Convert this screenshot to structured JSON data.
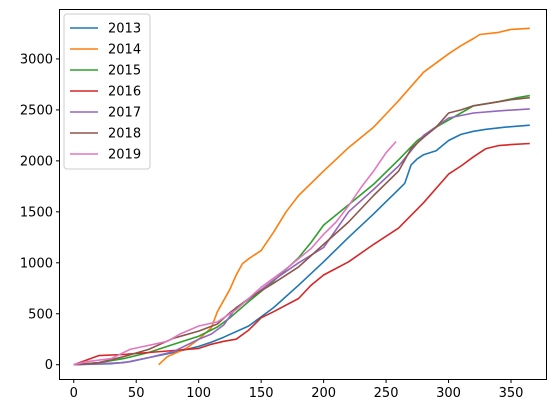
{
  "chart_data": {
    "type": "line",
    "xlim": [
      -11,
      378
    ],
    "ylim": [
      -140,
      3480
    ],
    "x_ticks": [
      0,
      50,
      100,
      150,
      200,
      250,
      300,
      350
    ],
    "y_ticks": [
      0,
      500,
      1000,
      1500,
      2000,
      2500,
      3000
    ],
    "grid": false,
    "legend_position": "top-left",
    "series": [
      {
        "name": "2013",
        "color": "#1f77b4",
        "points": [
          [
            0,
            0
          ],
          [
            30,
            10
          ],
          [
            45,
            30
          ],
          [
            60,
            70
          ],
          [
            80,
            120
          ],
          [
            100,
            180
          ],
          [
            110,
            220
          ],
          [
            120,
            270
          ],
          [
            140,
            380
          ],
          [
            160,
            560
          ],
          [
            180,
            780
          ],
          [
            200,
            1010
          ],
          [
            220,
            1250
          ],
          [
            240,
            1480
          ],
          [
            260,
            1720
          ],
          [
            265,
            1780
          ],
          [
            270,
            1960
          ],
          [
            275,
            2020
          ],
          [
            280,
            2060
          ],
          [
            290,
            2100
          ],
          [
            300,
            2200
          ],
          [
            310,
            2260
          ],
          [
            320,
            2290
          ],
          [
            330,
            2310
          ],
          [
            345,
            2330
          ],
          [
            365,
            2350
          ]
        ]
      },
      {
        "name": "2014",
        "color": "#ff7f0e",
        "points": [
          [
            68,
            0
          ],
          [
            75,
            80
          ],
          [
            90,
            160
          ],
          [
            100,
            250
          ],
          [
            110,
            360
          ],
          [
            115,
            520
          ],
          [
            125,
            740
          ],
          [
            130,
            880
          ],
          [
            135,
            990
          ],
          [
            140,
            1040
          ],
          [
            150,
            1120
          ],
          [
            160,
            1300
          ],
          [
            170,
            1500
          ],
          [
            180,
            1660
          ],
          [
            200,
            1900
          ],
          [
            220,
            2130
          ],
          [
            240,
            2330
          ],
          [
            260,
            2590
          ],
          [
            280,
            2870
          ],
          [
            300,
            3050
          ],
          [
            310,
            3130
          ],
          [
            320,
            3200
          ],
          [
            325,
            3240
          ],
          [
            340,
            3260
          ],
          [
            350,
            3290
          ],
          [
            365,
            3300
          ]
        ]
      },
      {
        "name": "2015",
        "color": "#2ca02c",
        "points": [
          [
            0,
            0
          ],
          [
            20,
            20
          ],
          [
            40,
            60
          ],
          [
            60,
            120
          ],
          [
            80,
            200
          ],
          [
            100,
            280
          ],
          [
            115,
            370
          ],
          [
            125,
            460
          ],
          [
            140,
            620
          ],
          [
            160,
            820
          ],
          [
            180,
            1050
          ],
          [
            190,
            1200
          ],
          [
            200,
            1370
          ],
          [
            220,
            1570
          ],
          [
            240,
            1770
          ],
          [
            260,
            2010
          ],
          [
            275,
            2200
          ],
          [
            290,
            2330
          ],
          [
            300,
            2400
          ],
          [
            310,
            2470
          ],
          [
            320,
            2540
          ],
          [
            340,
            2580
          ],
          [
            355,
            2620
          ],
          [
            365,
            2640
          ]
        ]
      },
      {
        "name": "2016",
        "color": "#d62728",
        "points": [
          [
            0,
            0
          ],
          [
            20,
            90
          ],
          [
            40,
            100
          ],
          [
            60,
            120
          ],
          [
            80,
            140
          ],
          [
            100,
            160
          ],
          [
            110,
            200
          ],
          [
            120,
            230
          ],
          [
            130,
            250
          ],
          [
            140,
            340
          ],
          [
            150,
            460
          ],
          [
            160,
            520
          ],
          [
            180,
            650
          ],
          [
            190,
            780
          ],
          [
            200,
            880
          ],
          [
            220,
            1010
          ],
          [
            240,
            1180
          ],
          [
            260,
            1340
          ],
          [
            280,
            1590
          ],
          [
            300,
            1870
          ],
          [
            310,
            1950
          ],
          [
            320,
            2040
          ],
          [
            330,
            2120
          ],
          [
            340,
            2150
          ],
          [
            350,
            2160
          ],
          [
            365,
            2170
          ]
        ]
      },
      {
        "name": "2017",
        "color": "#9467bd",
        "points": [
          [
            0,
            0
          ],
          [
            40,
            20
          ],
          [
            60,
            70
          ],
          [
            80,
            130
          ],
          [
            100,
            250
          ],
          [
            110,
            300
          ],
          [
            120,
            390
          ],
          [
            130,
            560
          ],
          [
            140,
            640
          ],
          [
            160,
            830
          ],
          [
            180,
            1000
          ],
          [
            200,
            1150
          ],
          [
            220,
            1500
          ],
          [
            240,
            1720
          ],
          [
            260,
            1950
          ],
          [
            280,
            2250
          ],
          [
            300,
            2420
          ],
          [
            320,
            2470
          ],
          [
            340,
            2490
          ],
          [
            365,
            2510
          ]
        ]
      },
      {
        "name": "2018",
        "color": "#8c564b",
        "points": [
          [
            0,
            0
          ],
          [
            20,
            20
          ],
          [
            40,
            80
          ],
          [
            60,
            150
          ],
          [
            80,
            260
          ],
          [
            100,
            330
          ],
          [
            115,
            400
          ],
          [
            125,
            510
          ],
          [
            140,
            650
          ],
          [
            160,
            800
          ],
          [
            180,
            960
          ],
          [
            200,
            1180
          ],
          [
            220,
            1400
          ],
          [
            240,
            1660
          ],
          [
            260,
            1900
          ],
          [
            270,
            2120
          ],
          [
            280,
            2230
          ],
          [
            290,
            2330
          ],
          [
            300,
            2470
          ],
          [
            310,
            2500
          ],
          [
            320,
            2540
          ],
          [
            330,
            2560
          ],
          [
            350,
            2600
          ],
          [
            365,
            2620
          ]
        ]
      },
      {
        "name": "2019",
        "color": "#e377c2",
        "points": [
          [
            0,
            0
          ],
          [
            10,
            30
          ],
          [
            30,
            60
          ],
          [
            45,
            150
          ],
          [
            60,
            190
          ],
          [
            75,
            230
          ],
          [
            85,
            300
          ],
          [
            100,
            380
          ],
          [
            115,
            420
          ],
          [
            130,
            540
          ],
          [
            150,
            760
          ],
          [
            170,
            940
          ],
          [
            190,
            1140
          ],
          [
            200,
            1280
          ],
          [
            210,
            1400
          ],
          [
            220,
            1560
          ],
          [
            230,
            1740
          ],
          [
            240,
            1900
          ],
          [
            250,
            2080
          ],
          [
            258,
            2190
          ]
        ]
      }
    ]
  }
}
